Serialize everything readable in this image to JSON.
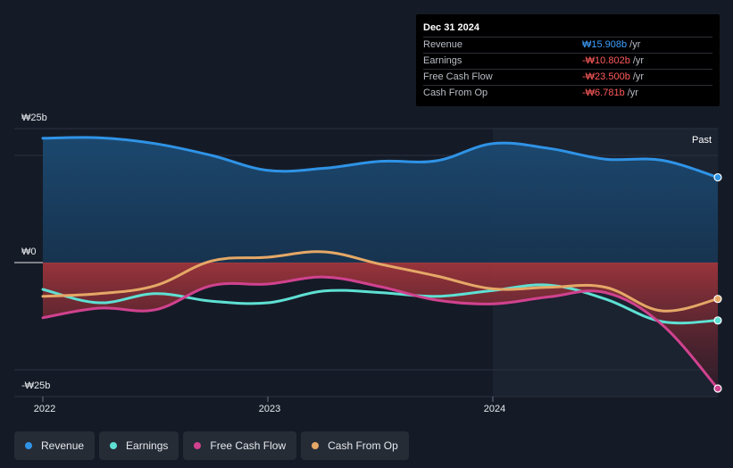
{
  "tooltip": {
    "date": "Dec 31 2024",
    "rows": [
      {
        "label": "Revenue",
        "value": "₩15.908b",
        "unit": "/yr",
        "color": "#3ea0ff"
      },
      {
        "label": "Earnings",
        "value": "-₩10.802b",
        "unit": "/yr",
        "color": "#ff5a5a"
      },
      {
        "label": "Free Cash Flow",
        "value": "-₩23.500b",
        "unit": "/yr",
        "color": "#ff5a5a"
      },
      {
        "label": "Cash From Op",
        "value": "-₩6.781b",
        "unit": "/yr",
        "color": "#ff5a5a"
      }
    ]
  },
  "chart_data": {
    "type": "line",
    "title": "",
    "y_tick_labels": [
      "₩25b",
      "₩0",
      "-₩25b"
    ],
    "ylim": [
      -25,
      25
    ],
    "xlim": [
      2022,
      2025
    ],
    "x_tick_labels": [
      "2022",
      "2023",
      "2024"
    ],
    "x_ticks": [
      2022,
      2023,
      2024
    ],
    "past_label": "Past",
    "past_start": 2024,
    "series": [
      {
        "name": "Revenue",
        "color": "#2f93e6",
        "x": [
          2022,
          2022.25,
          2022.5,
          2022.75,
          2023,
          2023.25,
          2023.5,
          2023.75,
          2024,
          2024.25,
          2024.5,
          2024.75,
          2025
        ],
        "y": [
          23.2,
          23.3,
          22.2,
          20.0,
          17.2,
          17.6,
          18.9,
          19.0,
          22.2,
          21.3,
          19.3,
          19.1,
          15.908
        ]
      },
      {
        "name": "Earnings",
        "color": "#5ee0d3",
        "x": [
          2022,
          2022.25,
          2022.5,
          2022.75,
          2023,
          2023.25,
          2023.5,
          2023.75,
          2024,
          2024.25,
          2024.5,
          2024.75,
          2025
        ],
        "y": [
          -5.0,
          -7.5,
          -5.8,
          -7.2,
          -7.5,
          -5.3,
          -5.6,
          -6.3,
          -5.2,
          -4.2,
          -6.8,
          -11.0,
          -10.802
        ]
      },
      {
        "name": "Free Cash Flow",
        "color": "#d0428f",
        "x": [
          2022,
          2022.25,
          2022.5,
          2022.75,
          2023,
          2023.25,
          2023.5,
          2023.75,
          2024,
          2024.25,
          2024.5,
          2024.75,
          2025
        ],
        "y": [
          -10.3,
          -8.5,
          -8.8,
          -4.3,
          -4.0,
          -2.7,
          -4.5,
          -7.0,
          -7.7,
          -6.4,
          -5.6,
          -11.5,
          -23.5
        ]
      },
      {
        "name": "Cash From Op",
        "color": "#e5a867",
        "x": [
          2022,
          2022.25,
          2022.5,
          2022.75,
          2023,
          2023.25,
          2023.5,
          2023.75,
          2024,
          2024.25,
          2024.5,
          2024.75,
          2025
        ],
        "y": [
          -6.3,
          -5.8,
          -4.3,
          0.3,
          1.0,
          2.0,
          -0.3,
          -2.5,
          -4.9,
          -4.6,
          -4.6,
          -9.0,
          -6.781
        ]
      }
    ]
  },
  "legend": [
    {
      "label": "Revenue",
      "color": "#2f93e6"
    },
    {
      "label": "Earnings",
      "color": "#5ee0d3"
    },
    {
      "label": "Free Cash Flow",
      "color": "#d0428f"
    },
    {
      "label": "Cash From Op",
      "color": "#e5a867"
    }
  ]
}
